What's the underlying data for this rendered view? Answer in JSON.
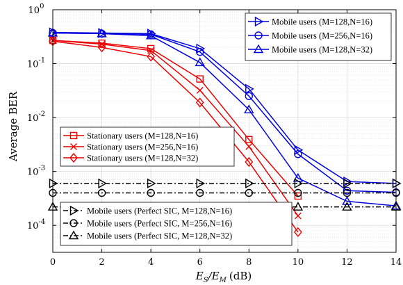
{
  "chart_data": {
    "type": "line",
    "ylabel": "Average BER",
    "xlabel_main": "E",
    "xlabel_sub1": "S",
    "xlabel_sep": "/E",
    "xlabel_sub2": "M",
    "xlabel_unit": "(dB)",
    "xlim": [
      0,
      14
    ],
    "ylim": [
      3.16e-05,
      1
    ],
    "yscale": "log",
    "grid": true,
    "xticks": [
      0,
      2,
      4,
      6,
      8,
      10,
      12,
      14
    ],
    "xtick_labels": [
      "0",
      "2",
      "4",
      "6",
      "8",
      "10",
      "12",
      "14"
    ],
    "yticks": [
      0.0001,
      0.001,
      0.01,
      0.1,
      1
    ],
    "ytick_labels": [
      {
        "base": "10",
        "exp": "-4"
      },
      {
        "base": "10",
        "exp": "-3"
      },
      {
        "base": "10",
        "exp": "-2"
      },
      {
        "base": "10",
        "exp": "-1"
      },
      {
        "base": "10",
        "exp": "0"
      }
    ],
    "legends": [
      {
        "placement": "top-right",
        "entries": [
          0,
          1,
          2
        ]
      },
      {
        "placement": "middle-left",
        "entries": [
          3,
          4,
          5
        ]
      },
      {
        "placement": "bottom-left",
        "entries": [
          6,
          7,
          8
        ]
      }
    ],
    "series": [
      {
        "name": "Mobile users (M=128,N=16)",
        "color": "#0000dd",
        "marker": "triangle-right",
        "line": "solid",
        "x": [
          0,
          2,
          4,
          6,
          8,
          10,
          12,
          14
        ],
        "y": [
          0.38,
          0.37,
          0.36,
          0.19,
          0.034,
          0.0025,
          0.00065,
          0.0006
        ]
      },
      {
        "name": "Mobile users (M=256,N=16)",
        "color": "#0000dd",
        "marker": "circle",
        "line": "solid",
        "x": [
          0,
          2,
          4,
          6,
          8,
          10,
          12,
          14
        ],
        "y": [
          0.37,
          0.36,
          0.35,
          0.165,
          0.025,
          0.0021,
          0.00044,
          0.00041
        ]
      },
      {
        "name": "Mobile users (M=128,N=32)",
        "color": "#0000dd",
        "marker": "triangle-up",
        "line": "solid",
        "x": [
          0,
          2,
          4,
          6,
          8,
          10,
          12,
          14
        ],
        "y": [
          0.37,
          0.36,
          0.33,
          0.105,
          0.014,
          0.00075,
          0.00028,
          0.00023
        ]
      },
      {
        "name": "Stationary users (M=128,N=16)",
        "color": "#ee0000",
        "marker": "square",
        "line": "solid",
        "x": [
          0,
          2,
          4,
          6,
          8,
          10
        ],
        "y": [
          0.27,
          0.24,
          0.19,
          0.052,
          0.0039,
          0.00035
        ]
      },
      {
        "name": "Stationary users (M=256,N=16)",
        "color": "#ee0000",
        "marker": "x",
        "line": "solid",
        "x": [
          0,
          2,
          4,
          6,
          8,
          10
        ],
        "y": [
          0.27,
          0.23,
          0.175,
          0.032,
          0.0029,
          0.00015
        ]
      },
      {
        "name": "Stationary users (M=128,N=32)",
        "color": "#ee0000",
        "marker": "diamond",
        "line": "solid",
        "x": [
          0,
          2,
          4,
          6,
          8,
          10
        ],
        "y": [
          0.26,
          0.2,
          0.135,
          0.019,
          0.0015,
          7.5e-05
        ]
      },
      {
        "name": "Mobile users (Perfect SIC, M=128,N=16)",
        "color": "#000000",
        "marker": "triangle-right",
        "line": "dashdot",
        "x": [
          0,
          2,
          4,
          6,
          8,
          10,
          12,
          14
        ],
        "y": [
          0.0006,
          0.0006,
          0.0006,
          0.0006,
          0.0006,
          0.0006,
          0.0006,
          0.0006
        ]
      },
      {
        "name": "Mobile users (Perfect SIC, M=256,N=16)",
        "color": "#000000",
        "marker": "circle",
        "line": "dashdot",
        "x": [
          0,
          2,
          4,
          6,
          8,
          10,
          12,
          14
        ],
        "y": [
          0.0004,
          0.0004,
          0.0004,
          0.0004,
          0.0004,
          0.0004,
          0.0004,
          0.0004
        ]
      },
      {
        "name": "Mobile users (Perfect SIC, M=128,N=32)",
        "color": "#000000",
        "marker": "triangle-up",
        "line": "dashdot",
        "x": [
          0,
          2,
          4,
          6,
          8,
          10,
          12,
          14
        ],
        "y": [
          0.00022,
          0.00022,
          0.00022,
          0.00022,
          0.00022,
          0.00022,
          0.00022,
          0.00022
        ]
      }
    ]
  }
}
